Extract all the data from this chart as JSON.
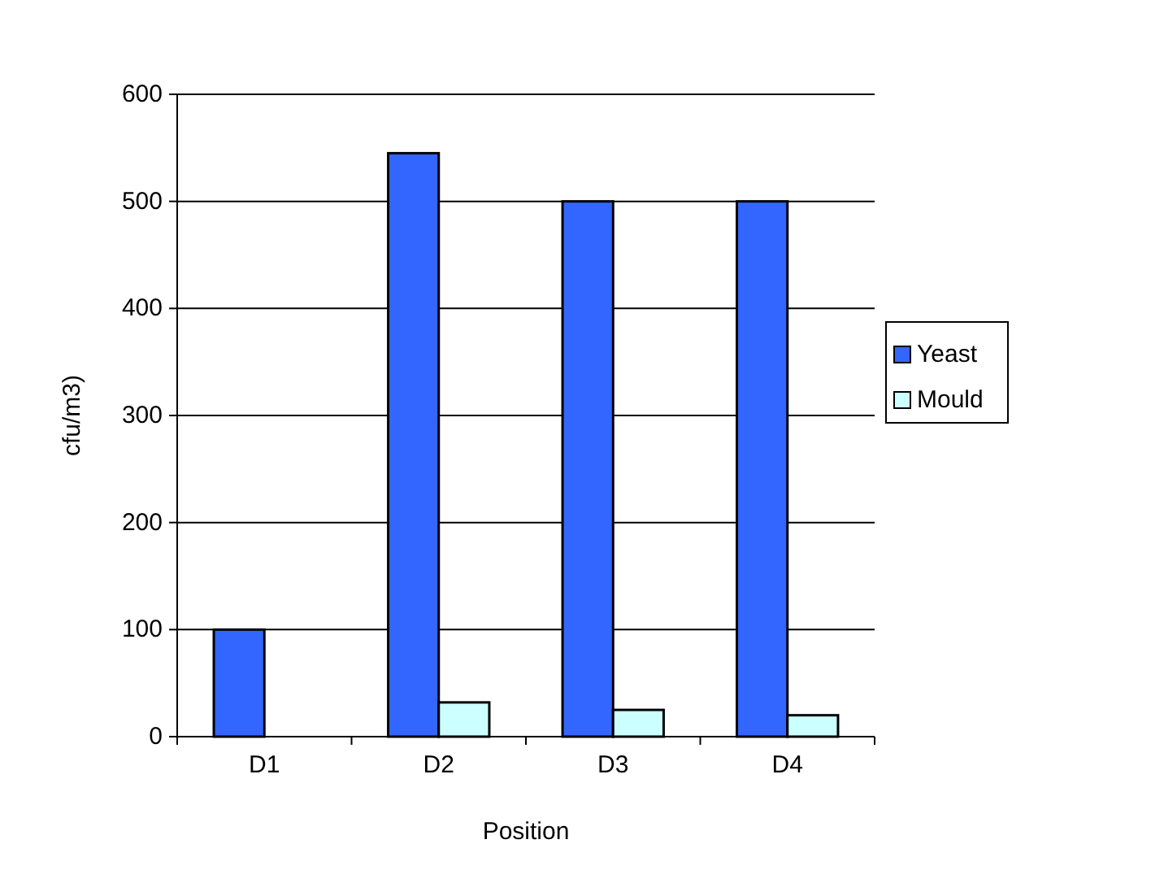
{
  "chart_data": {
    "type": "bar",
    "xlabel": "Position",
    "ylabel": "cfu/m3)",
    "categories": [
      "D1",
      "D2",
      "D3",
      "D4"
    ],
    "series": [
      {
        "name": "Yeast",
        "color": "#3366ff",
        "values": [
          100,
          545,
          500,
          500
        ]
      },
      {
        "name": "Mould",
        "color": "#ccffff",
        "values": [
          0,
          32,
          25,
          20
        ]
      }
    ],
    "ylim": [
      0,
      600
    ],
    "yticks": [
      0,
      100,
      200,
      300,
      400,
      500,
      600
    ],
    "grid": "y",
    "legend": "right"
  }
}
